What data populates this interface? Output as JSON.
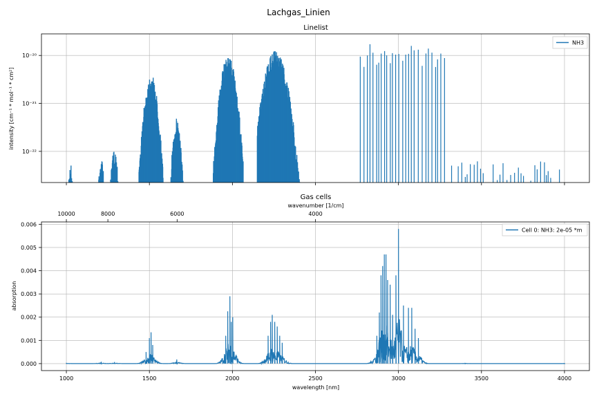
{
  "figure": {
    "title": "Lachgas_Linien"
  },
  "colors": {
    "series": "#1f77b4",
    "grid": "#b0b0b0",
    "axis": "#000000"
  },
  "chart_data": [
    {
      "type": "bar",
      "title": "Linelist",
      "xlabel": "",
      "ylabel": "intensity [cm⁻¹ * mol⁻¹ * cm²]",
      "yscale": "log",
      "xlim": [
        850,
        4150
      ],
      "ylim_log10": [
        -22.65,
        -19.55
      ],
      "x_ticks": [
        1000,
        1500,
        2000,
        2500,
        3000,
        3500,
        4000
      ],
      "y_ticks": [
        {
          "value_log10": -22,
          "label": "10⁻²²"
        },
        {
          "value_log10": -21,
          "label": "10⁻²¹"
        },
        {
          "value_log10": -20,
          "label": "10⁻²⁰"
        }
      ],
      "grid": true,
      "legend": {
        "position": "top-right",
        "entries": [
          "NH3"
        ]
      },
      "series": [
        {
          "name": "NH3",
          "bands": [
            {
              "start": 1010,
              "end": 1045,
              "peak_x": 1025,
              "peak_log10": -22.23,
              "width": 15
            },
            {
              "start": 1185,
              "end": 1230,
              "peak_x": 1210,
              "peak_log10": -22.15,
              "width": 20
            },
            {
              "start": 1255,
              "end": 1330,
              "peak_x": 1290,
              "peak_log10": -21.95,
              "width": 22
            },
            {
              "start": 1425,
              "end": 1600,
              "peak_x": 1510,
              "peak_log10": -20.4,
              "width": 38
            },
            {
              "start": 1620,
              "end": 1725,
              "peak_x": 1665,
              "peak_log10": -21.3,
              "width": 25
            },
            {
              "start": 1885,
              "end": 2065,
              "peak_x": 1975,
              "peak_log10": -20.0,
              "width": 45
            },
            {
              "start": 2150,
              "end": 2420,
              "peak_x": 2260,
              "peak_log10": -19.9,
              "width": 65
            },
            {
              "start": 2770,
              "end": 3280,
              "peak_x": 2975,
              "peak_log10": -19.75,
              "width": 125
            },
            {
              "start": 3320,
              "end": 4000,
              "peak_x": 3650,
              "peak_log10": -22.2,
              "width": 400
            }
          ]
        }
      ]
    },
    {
      "type": "line",
      "title": "Gas cells",
      "xlabel": "wavelength [nm]",
      "ylabel": "absorption",
      "xlim": [
        850,
        4150
      ],
      "ylim": [
        -0.0003,
        0.0061
      ],
      "x_ticks": [
        1000,
        1500,
        2000,
        2500,
        3000,
        3500,
        4000
      ],
      "y_ticks": [
        0.0,
        0.001,
        0.002,
        0.003,
        0.004,
        0.005,
        0.006
      ],
      "y_tick_labels": [
        "0.000",
        "0.001",
        "0.002",
        "0.003",
        "0.004",
        "0.005",
        "0.006"
      ],
      "top_axis": {
        "label": "wavenumber [1/cm]",
        "ticks": [
          {
            "x": 1000,
            "label": "10000"
          },
          {
            "x": 1250,
            "label": "8000"
          },
          {
            "x": 1667,
            "label": "6000"
          },
          {
            "x": 2500,
            "label": "4000"
          }
        ]
      },
      "grid": true,
      "legend": {
        "position": "top-right",
        "entries": [
          "Cell 0: NH3: 2e-05 *m"
        ]
      },
      "series": [
        {
          "name": "Cell 0: NH3: 2e-05 *m",
          "peaks": [
            {
              "x": 1000,
              "y": 3e-05
            },
            {
              "x": 1210,
              "y": 8e-05
            },
            {
              "x": 1290,
              "y": 7e-05
            },
            {
              "x": 1480,
              "y": 0.0005
            },
            {
              "x": 1500,
              "y": 0.0011
            },
            {
              "x": 1510,
              "y": 0.00135
            },
            {
              "x": 1520,
              "y": 0.0008
            },
            {
              "x": 1665,
              "y": 0.00018
            },
            {
              "x": 1960,
              "y": 0.0012
            },
            {
              "x": 1972,
              "y": 0.00225
            },
            {
              "x": 1985,
              "y": 0.0029
            },
            {
              "x": 1993,
              "y": 0.0018
            },
            {
              "x": 2002,
              "y": 0.002
            },
            {
              "x": 2215,
              "y": 0.0012
            },
            {
              "x": 2230,
              "y": 0.0018
            },
            {
              "x": 2240,
              "y": 0.0021
            },
            {
              "x": 2255,
              "y": 0.0018
            },
            {
              "x": 2270,
              "y": 0.0016
            },
            {
              "x": 2285,
              "y": 0.0012
            },
            {
              "x": 2300,
              "y": 0.0009
            },
            {
              "x": 2870,
              "y": 0.0012
            },
            {
              "x": 2885,
              "y": 0.0022
            },
            {
              "x": 2895,
              "y": 0.0038
            },
            {
              "x": 2905,
              "y": 0.0042
            },
            {
              "x": 2915,
              "y": 0.0047
            },
            {
              "x": 2925,
              "y": 0.0047
            },
            {
              "x": 2935,
              "y": 0.0036
            },
            {
              "x": 2950,
              "y": 0.0034
            },
            {
              "x": 2965,
              "y": 0.0021
            },
            {
              "x": 2985,
              "y": 0.0038
            },
            {
              "x": 3000,
              "y": 0.0058
            },
            {
              "x": 3030,
              "y": 0.0025
            },
            {
              "x": 3060,
              "y": 0.0024
            },
            {
              "x": 3080,
              "y": 0.0024
            },
            {
              "x": 3100,
              "y": 0.0015
            },
            {
              "x": 3120,
              "y": 0.0011
            },
            {
              "x": 3400,
              "y": 3e-05
            },
            {
              "x": 4000,
              "y": 2e-05
            }
          ]
        }
      ]
    }
  ]
}
